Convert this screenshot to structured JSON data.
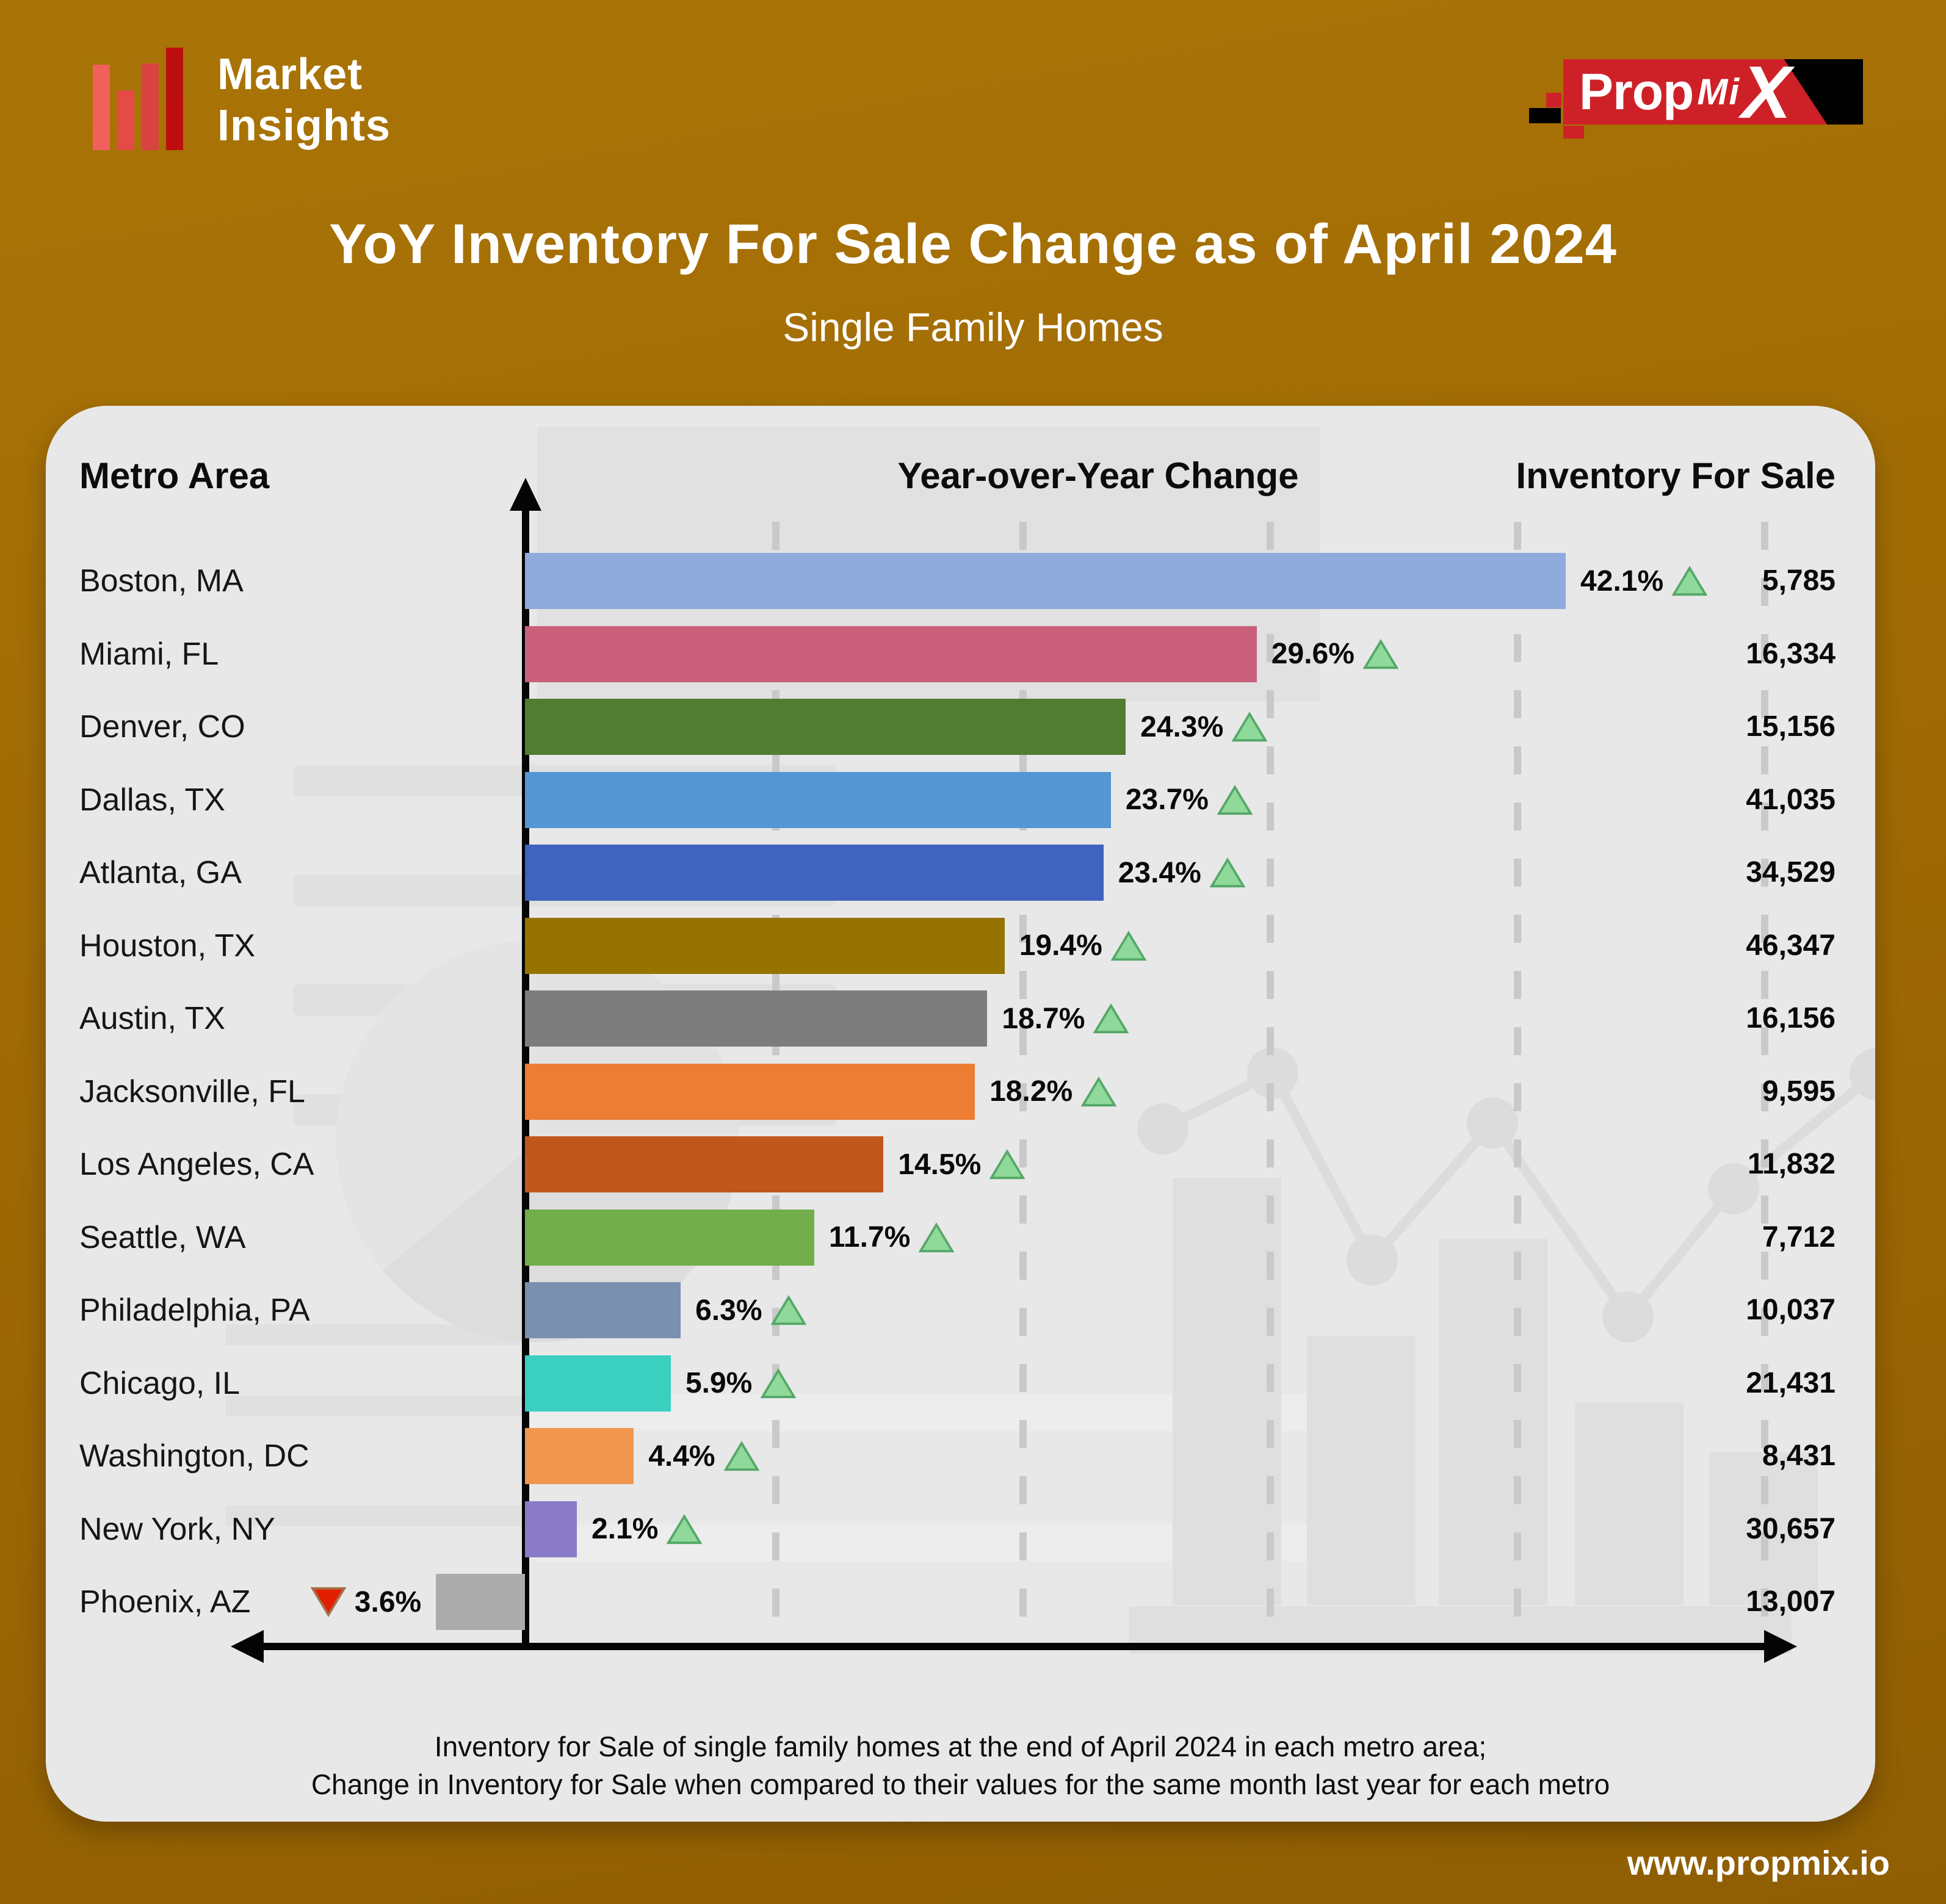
{
  "branding": {
    "logo_line1": "Market",
    "logo_line2": "Insights",
    "propmix_prop": "Prop",
    "propmix_mi": "Mi",
    "propmix_x": "X"
  },
  "header": {
    "title": "YoY Inventory For Sale Change as of April 2024",
    "subtitle": "Single Family Homes"
  },
  "columns": {
    "metro": "Metro Area",
    "yoy": "Year-over-Year Change",
    "inventory": "Inventory For Sale"
  },
  "footer": {
    "caption_line1": "Inventory for Sale of single family homes at the end of April 2024 in each metro area;",
    "caption_line2": "Change in Inventory for Sale when compared to their values for the same month last year for each metro",
    "website": "www.propmix.io"
  },
  "colors": {
    "background_orange": "#9c6a04",
    "panel_gray": "#e8e8e8",
    "axis_black": "#050505",
    "gridline_gray": "#c9c9c9",
    "up_triangle_fill": "#8fd99a",
    "up_triangle_stroke": "#55a868",
    "down_triangle_fill": "#e31e00",
    "down_triangle_stroke": "#a5714a",
    "propmix_red": "#ce2127",
    "logo_bar_reds": [
      "#f2605c",
      "#e64a45",
      "#d84340",
      "#bc0f0d"
    ]
  },
  "chart_data": {
    "type": "bar",
    "orientation": "horizontal",
    "title": "YoY Inventory For Sale Change as of April 2024",
    "subtitle": "Single Family Homes",
    "xlabel": "Year-over-Year Change (%)",
    "xlim": [
      -5,
      50
    ],
    "gridlines_pct": [
      10,
      20,
      30,
      40,
      50
    ],
    "grid": "dashed-vertical",
    "categories": [
      "Boston, MA",
      "Miami, FL",
      "Denver, CO",
      "Dallas, TX",
      "Atlanta, GA",
      "Houston, TX",
      "Austin, TX",
      "Jacksonville, FL",
      "Los Angeles, CA",
      "Seattle, WA",
      "Philadelphia, PA",
      "Chicago, IL",
      "Washington, DC",
      "New York, NY",
      "Phoenix, AZ"
    ],
    "series": [
      {
        "name": "Year-over-Year Change (%)",
        "values": [
          42.1,
          29.6,
          24.3,
          23.7,
          23.4,
          19.4,
          18.7,
          18.2,
          14.5,
          11.7,
          6.3,
          5.9,
          4.4,
          2.1,
          -3.6
        ]
      },
      {
        "name": "Inventory For Sale",
        "values": [
          5785,
          16334,
          15156,
          41035,
          34529,
          46347,
          16156,
          9595,
          11832,
          7712,
          10037,
          21431,
          8431,
          30657,
          13007
        ]
      }
    ],
    "rows": [
      {
        "metro": "Boston, MA",
        "yoy_pct": 42.1,
        "pct_label": "42.1%",
        "direction": "up",
        "inventory": "5,785",
        "color": "#8faadc"
      },
      {
        "metro": "Miami, FL",
        "yoy_pct": 29.6,
        "pct_label": "29.6%",
        "direction": "up",
        "inventory": "16,334",
        "color": "#ca5f7b"
      },
      {
        "metro": "Denver, CO",
        "yoy_pct": 24.3,
        "pct_label": "24.3%",
        "direction": "up",
        "inventory": "15,156",
        "color": "#507d32"
      },
      {
        "metro": "Dallas, TX",
        "yoy_pct": 23.7,
        "pct_label": "23.7%",
        "direction": "up",
        "inventory": "41,035",
        "color": "#5596d4"
      },
      {
        "metro": "Atlanta, GA",
        "yoy_pct": 23.4,
        "pct_label": "23.4%",
        "direction": "up",
        "inventory": "34,529",
        "color": "#3f63be"
      },
      {
        "metro": "Houston, TX",
        "yoy_pct": 19.4,
        "pct_label": "19.4%",
        "direction": "up",
        "inventory": "46,347",
        "color": "#967300"
      },
      {
        "metro": "Austin, TX",
        "yoy_pct": 18.7,
        "pct_label": "18.7%",
        "direction": "up",
        "inventory": "16,156",
        "color": "#7d7d7d"
      },
      {
        "metro": "Jacksonville, FL",
        "yoy_pct": 18.2,
        "pct_label": "18.2%",
        "direction": "up",
        "inventory": "9,595",
        "color": "#ec7d33"
      },
      {
        "metro": "Los Angeles, CA",
        "yoy_pct": 14.5,
        "pct_label": "14.5%",
        "direction": "up",
        "inventory": "11,832",
        "color": "#c1581b"
      },
      {
        "metro": "Seattle, WA",
        "yoy_pct": 11.7,
        "pct_label": "11.7%",
        "direction": "up",
        "inventory": "7,712",
        "color": "#72ae4b"
      },
      {
        "metro": "Philadelphia, PA",
        "yoy_pct": 6.3,
        "pct_label": "6.3%",
        "direction": "up",
        "inventory": "10,037",
        "color": "#7b90af"
      },
      {
        "metro": "Chicago, IL",
        "yoy_pct": 5.9,
        "pct_label": "5.9%",
        "direction": "up",
        "inventory": "21,431",
        "color": "#3bcfc0"
      },
      {
        "metro": "Washington, DC",
        "yoy_pct": 4.4,
        "pct_label": "4.4%",
        "direction": "up",
        "inventory": "8,431",
        "color": "#f0964f"
      },
      {
        "metro": "New York, NY",
        "yoy_pct": 2.1,
        "pct_label": "2.1%",
        "direction": "up",
        "inventory": "30,657",
        "color": "#8a7bc8"
      },
      {
        "metro": "Phoenix, AZ",
        "yoy_pct": -3.6,
        "pct_label": "3.6%",
        "direction": "down",
        "inventory": "13,007",
        "color": "#ababab"
      }
    ]
  }
}
